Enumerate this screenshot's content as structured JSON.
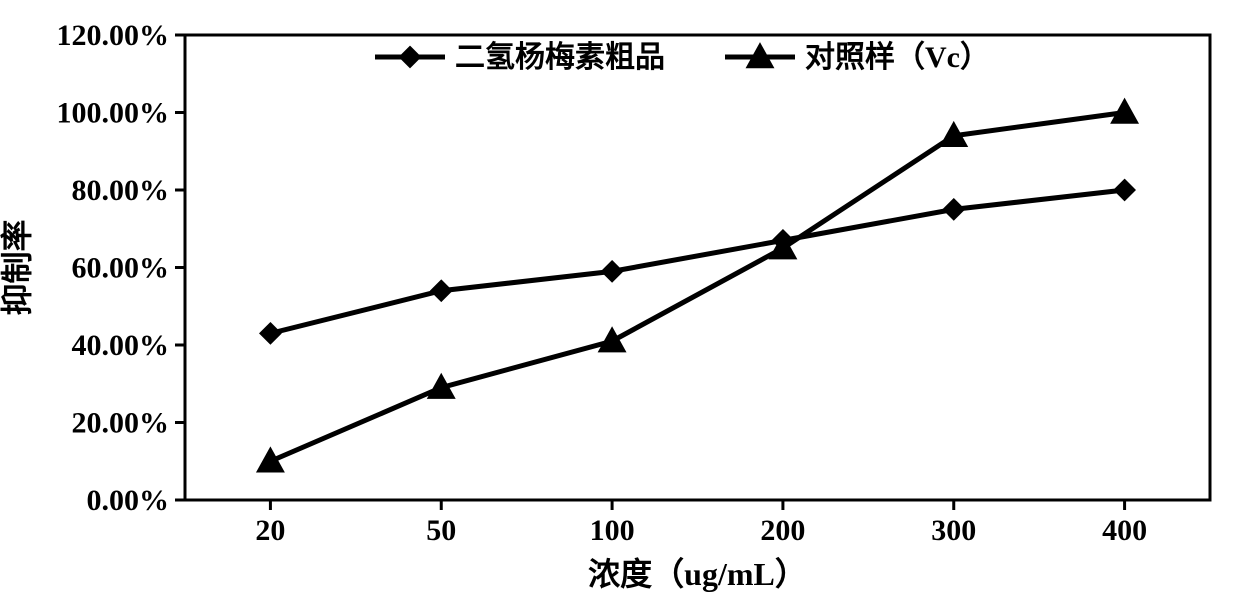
{
  "chart": {
    "type": "line",
    "background_color": "#ffffff",
    "plot_border_color": "#000000",
    "plot_border_width": 3,
    "axis_line_width": 3,
    "tick_length": 10,
    "tick_width": 3,
    "line_width": 5,
    "marker_border_width": 2,
    "x_categories": [
      "20",
      "50",
      "100",
      "200",
      "300",
      "400"
    ],
    "y_ticks": [
      "0.00%",
      "20.00%",
      "40.00%",
      "60.00%",
      "80.00%",
      "100.00%",
      "120.00%"
    ],
    "y_min": 0,
    "y_max": 120,
    "x_axis_title": "浓度（ug/mL）",
    "y_axis_title": "抑制率",
    "y_axis_title_orientation": "vertical",
    "tick_fontsize": 30,
    "tick_fontweight": 700,
    "axis_title_fontsize": 32,
    "axis_title_fontweight": 700,
    "legend": {
      "fontsize": 30,
      "fontweight": 700,
      "position": "top-center",
      "items": [
        {
          "label": "二氢杨梅素粗品",
          "marker": "diamond",
          "color": "#000000"
        },
        {
          "label": "对照样（Vc）",
          "marker": "triangle",
          "color": "#000000"
        }
      ]
    },
    "series": [
      {
        "name": "二氢杨梅素粗品",
        "marker": "diamond",
        "marker_size": 20,
        "color": "#000000",
        "values": [
          43,
          54,
          59,
          67,
          75,
          80
        ]
      },
      {
        "name": "对照样（Vc）",
        "marker": "triangle",
        "marker_size": 22,
        "color": "#000000",
        "values": [
          10,
          29,
          41,
          65,
          94,
          100
        ]
      }
    ]
  }
}
